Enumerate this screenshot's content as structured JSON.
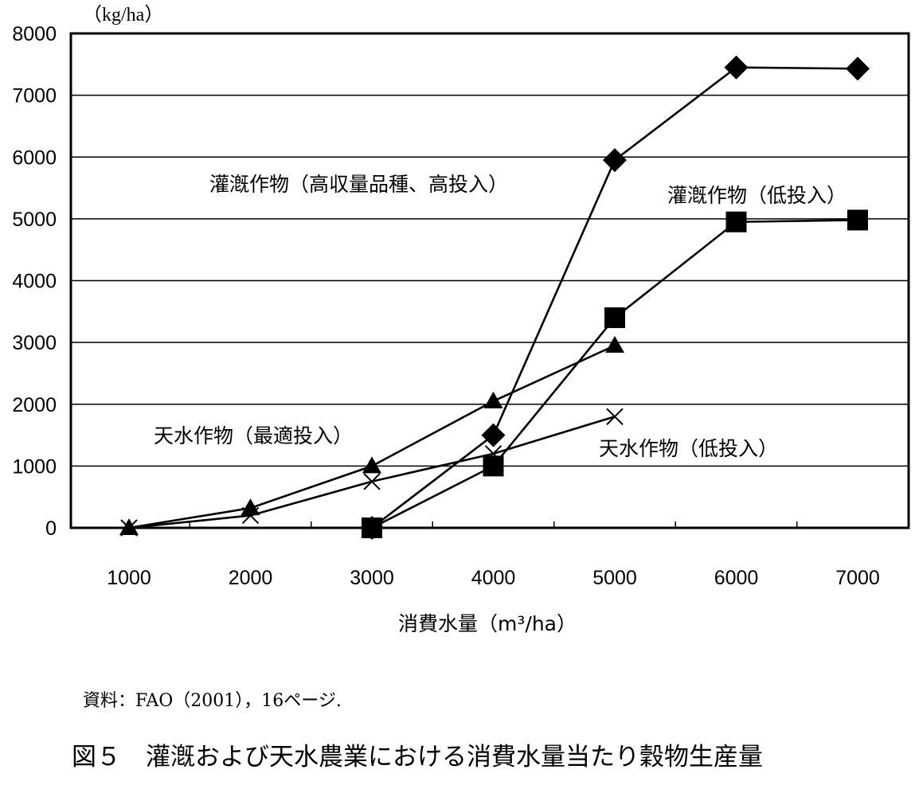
{
  "chart_data": {
    "type": "line",
    "title": "",
    "xlabel": "消費水量（m³/ha）",
    "ylabel": "（kg/ha）",
    "x": [
      1000,
      2000,
      3000,
      4000,
      5000,
      6000,
      7000
    ],
    "xticks": [
      "1000",
      "2000",
      "3000",
      "4000",
      "5000",
      "6000",
      "7000"
    ],
    "ylim": [
      0,
      8000
    ],
    "yticks": [
      0,
      1000,
      2000,
      3000,
      4000,
      5000,
      6000,
      7000,
      8000
    ],
    "grid": true,
    "series": [
      {
        "name": "灌漑作物（高収量品種、高投入）",
        "marker": "diamond",
        "points": [
          [
            3000,
            0
          ],
          [
            4000,
            1500
          ],
          [
            5000,
            5950
          ],
          [
            6000,
            7450
          ],
          [
            7000,
            7430
          ]
        ]
      },
      {
        "name": "灌漑作物（低投入）",
        "marker": "square",
        "points": [
          [
            3000,
            0
          ],
          [
            4000,
            1000
          ],
          [
            5000,
            3400
          ],
          [
            6000,
            4950
          ],
          [
            7000,
            4980
          ]
        ]
      },
      {
        "name": "天水作物（最適投入）",
        "marker": "triangle",
        "points": [
          [
            1000,
            0
          ],
          [
            2000,
            320
          ],
          [
            3000,
            1000
          ],
          [
            4000,
            2050
          ],
          [
            5000,
            2950
          ]
        ]
      },
      {
        "name": "天水作物（低投入）",
        "marker": "x",
        "points": [
          [
            1000,
            0
          ],
          [
            2000,
            200
          ],
          [
            3000,
            750
          ],
          [
            4000,
            1200
          ],
          [
            5000,
            1800
          ]
        ]
      }
    ]
  },
  "source_note": "資料：FAO（2001），16ページ.",
  "caption": "図５　灌漑および天水農業における消費水量当たり穀物生産量"
}
